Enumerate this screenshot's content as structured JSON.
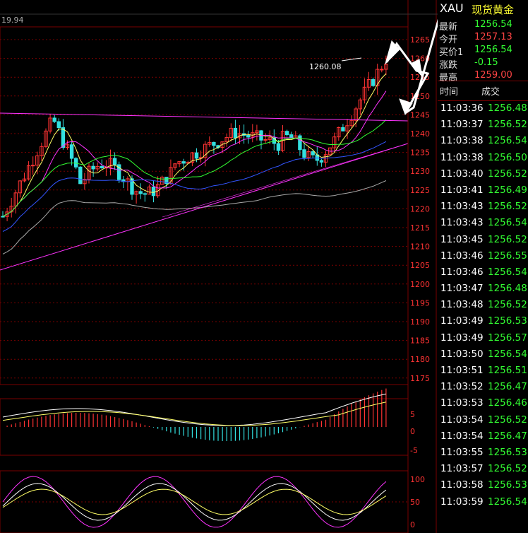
{
  "chart": {
    "top_left_value": "19.94",
    "annotation_high": "1260.08",
    "price_axis_labels": [
      "1265",
      "1260",
      "1255",
      "1250",
      "1245",
      "1240",
      "1235",
      "1230",
      "1225",
      "1220",
      "1215",
      "1210",
      "1205",
      "1200",
      "1195",
      "1190",
      "1185",
      "1180",
      "1175"
    ],
    "macd_axis_labels": [
      "5",
      "0",
      "-5"
    ],
    "kdj_axis_labels": [
      "100",
      "50",
      "0"
    ]
  },
  "quote": {
    "symbol": "XAU",
    "name": "现货黄金",
    "rows": [
      {
        "label": "最新",
        "value": "1256.54",
        "color": "#33ff33"
      },
      {
        "label": "今开",
        "value": "1257.13",
        "color": "#ff4444"
      },
      {
        "label": "买价1",
        "value": "1256.54",
        "color": "#33ff33"
      },
      {
        "label": "涨跌",
        "value": "-0.15",
        "color": "#33ff33"
      },
      {
        "label": "最高",
        "value": "1259.00",
        "color": "#ff4444"
      }
    ]
  },
  "trades": {
    "col_time": "时间",
    "col_price": "成交",
    "rows": [
      {
        "time": "11:03:36",
        "price": "1256.48"
      },
      {
        "time": "11:03:37",
        "price": "1256.52"
      },
      {
        "time": "11:03:38",
        "price": "1256.54"
      },
      {
        "time": "11:03:38",
        "price": "1256.50"
      },
      {
        "time": "11:03:40",
        "price": "1256.52"
      },
      {
        "time": "11:03:41",
        "price": "1256.49"
      },
      {
        "time": "11:03:43",
        "price": "1256.52"
      },
      {
        "time": "11:03:43",
        "price": "1256.54"
      },
      {
        "time": "11:03:45",
        "price": "1256.52"
      },
      {
        "time": "11:03:46",
        "price": "1256.55"
      },
      {
        "time": "11:03:46",
        "price": "1256.54"
      },
      {
        "time": "11:03:47",
        "price": "1256.48"
      },
      {
        "time": "11:03:48",
        "price": "1256.52"
      },
      {
        "time": "11:03:49",
        "price": "1256.53"
      },
      {
        "time": "11:03:49",
        "price": "1256.57"
      },
      {
        "time": "11:03:50",
        "price": "1256.54"
      },
      {
        "time": "11:03:51",
        "price": "1256.51"
      },
      {
        "time": "11:03:52",
        "price": "1256.47"
      },
      {
        "time": "11:03:53",
        "price": "1256.46"
      },
      {
        "time": "11:03:54",
        "price": "1256.52"
      },
      {
        "time": "11:03:54",
        "price": "1256.47"
      },
      {
        "time": "11:03:55",
        "price": "1256.53"
      },
      {
        "time": "11:03:57",
        "price": "1256.52"
      },
      {
        "time": "11:03:58",
        "price": "1256.53"
      },
      {
        "time": "11:03:59",
        "price": "1256.54"
      }
    ]
  },
  "colors": {
    "grid": "#7a0000",
    "up": "#ff3333",
    "down": "#33e0e0",
    "ma5": "#ffff66",
    "ma10": "#ff33ff",
    "ma20": "#33ff33",
    "ma30": "#3355ff",
    "ma60": "#aaaaaa"
  }
}
